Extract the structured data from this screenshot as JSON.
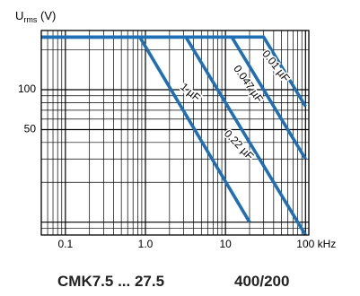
{
  "chart_data": {
    "type": "line",
    "x_scale": "log",
    "y_scale": "log",
    "xlim": [
      0.05,
      110
    ],
    "ylim": [
      8,
      280
    ],
    "grid": true,
    "ylabel_main": "U",
    "ylabel_sub": "rms",
    "ylabel_unit": " (V)",
    "x_ticks": [
      {
        "value": 0.1,
        "label": "0.1"
      },
      {
        "value": 1,
        "label": "1.0"
      },
      {
        "value": 10,
        "label": "10"
      },
      {
        "value": 100,
        "label": "100 kHz"
      }
    ],
    "y_ticks": [
      {
        "value": 100,
        "label": "100"
      },
      {
        "value": 50,
        "label": "50"
      }
    ],
    "line_color": "#1f6fb5",
    "series": [
      {
        "name": "1 µF",
        "x": [
          0.05,
          0.85,
          20
        ],
        "y": [
          250,
          250,
          10
        ]
      },
      {
        "name": "0.22 µF",
        "x": [
          0.05,
          3.2,
          100
        ],
        "y": [
          250,
          250,
          8
        ]
      },
      {
        "name": "0.047 µF",
        "x": [
          0.05,
          12,
          100
        ],
        "y": [
          250,
          250,
          30
        ]
      },
      {
        "name": "0.01 µF",
        "x": [
          0.05,
          30,
          100
        ],
        "y": [
          250,
          250,
          75
        ]
      }
    ],
    "annotations": [
      {
        "text": "1 µF",
        "x": 3.6,
        "y": 95,
        "angle": 40
      },
      {
        "text": "0.22 µF",
        "x": 14.5,
        "y": 38,
        "angle": 46
      },
      {
        "text": "0.047 µF",
        "x": 19,
        "y": 110,
        "angle": 55
      },
      {
        "text": "0.01 µF",
        "x": 42,
        "y": 150,
        "angle": 52
      }
    ]
  },
  "footer": {
    "left": "CMK7.5 ... 27.5",
    "right": "400/200"
  }
}
